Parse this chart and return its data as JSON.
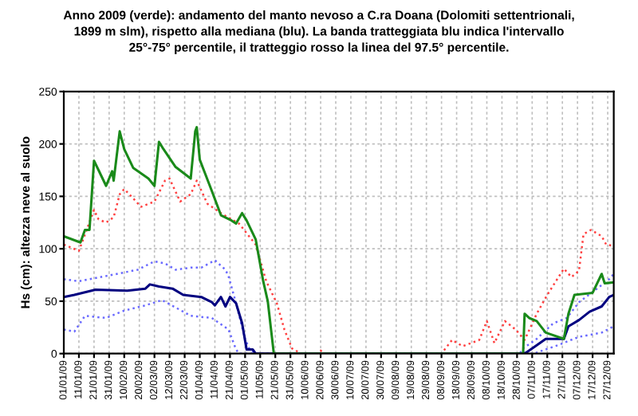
{
  "chart_data": {
    "type": "line",
    "title": "Anno 2009 (verde): andamento del manto nevoso a C.ra Doana (Dolomiti settentrionali,\n1899 m slm), rispetto alla mediana (blu). La banda tratteggiata blu indica l'intervallo\n25°-75° percentile, il tratteggio rosso la linea del 97.5° percentile.",
    "ylabel": "Hs (cm): altezza neve al suolo",
    "ylim": [
      0,
      250
    ],
    "yticks": [
      0,
      50,
      100,
      150,
      200,
      250
    ],
    "xlim": [
      "2009-01-01",
      "2009-12-31"
    ],
    "xticks": [
      {
        "value": "2009-01-01",
        "label": "01/01/09"
      },
      {
        "value": "2009-01-11",
        "label": "11/01/09"
      },
      {
        "value": "2009-01-21",
        "label": "21/01/09"
      },
      {
        "value": "2009-01-31",
        "label": "31/01/09"
      },
      {
        "value": "2009-02-10",
        "label": "10/02/09"
      },
      {
        "value": "2009-02-20",
        "label": "20/02/09"
      },
      {
        "value": "2009-03-02",
        "label": "02/03/09"
      },
      {
        "value": "2009-03-12",
        "label": "12/03/09"
      },
      {
        "value": "2009-03-22",
        "label": "22/03/09"
      },
      {
        "value": "2009-04-01",
        "label": "01/04/09"
      },
      {
        "value": "2009-04-11",
        "label": "11/04/09"
      },
      {
        "value": "2009-04-21",
        "label": "21/04/09"
      },
      {
        "value": "2009-05-01",
        "label": "01/05/09"
      },
      {
        "value": "2009-05-11",
        "label": "11/05/09"
      },
      {
        "value": "2009-05-21",
        "label": "21/05/09"
      },
      {
        "value": "2009-05-31",
        "label": "31/05/09"
      },
      {
        "value": "2009-06-10",
        "label": "10/06/09"
      },
      {
        "value": "2009-06-20",
        "label": "20/06/09"
      },
      {
        "value": "2009-06-30",
        "label": "30/06/09"
      },
      {
        "value": "2009-07-10",
        "label": "10/07/09"
      },
      {
        "value": "2009-07-20",
        "label": "20/07/09"
      },
      {
        "value": "2009-07-30",
        "label": "30/07/09"
      },
      {
        "value": "2009-08-09",
        "label": "09/08/09"
      },
      {
        "value": "2009-08-19",
        "label": "19/08/09"
      },
      {
        "value": "2009-08-29",
        "label": "29/08/09"
      },
      {
        "value": "2009-09-08",
        "label": "08/09/09"
      },
      {
        "value": "2009-09-18",
        "label": "18/09/09"
      },
      {
        "value": "2009-09-28",
        "label": "28/09/09"
      },
      {
        "value": "2009-10-08",
        "label": "08/10/09"
      },
      {
        "value": "2009-10-18",
        "label": "18/10/09"
      },
      {
        "value": "2009-10-28",
        "label": "28/10/09"
      },
      {
        "value": "2009-11-07",
        "label": "07/11/09"
      },
      {
        "value": "2009-11-17",
        "label": "17/11/09"
      },
      {
        "value": "2009-11-27",
        "label": "27/11/09"
      },
      {
        "value": "2009-12-07",
        "label": "07/12/09"
      },
      {
        "value": "2009-12-17",
        "label": "17/12/09"
      },
      {
        "value": "2009-12-27",
        "label": "27/12/09"
      }
    ],
    "grid": true,
    "legend": false,
    "series": [
      {
        "color": "#ff4040",
        "line_style": "dotted",
        "x": [
          "2009-01-01",
          "2009-01-11",
          "2009-01-21",
          "2009-01-24",
          "2009-01-29",
          "2009-02-03",
          "2009-02-07",
          "2009-02-10",
          "2009-02-16",
          "2009-02-21",
          "2009-03-02",
          "2009-03-09",
          "2009-03-12",
          "2009-03-19",
          "2009-03-26",
          "2009-03-30",
          "2009-04-06",
          "2009-04-16",
          "2009-04-27",
          "2009-05-08",
          "2009-05-15",
          "2009-05-22",
          "2009-05-27",
          "2009-06-01",
          "2009-06-07",
          "2009-06-18",
          "2009-06-20",
          "2009-06-22",
          "2009-09-08",
          "2009-09-15",
          "2009-09-22",
          "2009-10-03",
          "2009-10-08",
          "2009-10-13",
          "2009-10-20",
          "2009-10-27",
          "2009-11-02",
          "2009-11-10",
          "2009-11-17",
          "2009-11-24",
          "2009-11-28",
          "2009-12-03",
          "2009-12-08",
          "2009-12-11",
          "2009-12-16",
          "2009-12-23",
          "2009-12-26",
          "2009-12-30"
        ],
        "values": [
          104,
          98,
          137,
          128,
          125,
          130,
          152,
          157,
          148,
          140,
          145,
          165,
          167,
          145,
          152,
          165,
          143,
          133,
          124,
          104,
          69,
          48,
          23,
          5,
          0,
          0,
          3,
          0,
          0,
          13,
          7,
          13,
          31,
          10,
          31,
          23,
          13,
          38,
          56,
          72,
          81,
          73,
          79,
          114,
          118,
          112,
          104,
          103
        ]
      },
      {
        "color": "#6a6aff",
        "line_style": "dotted",
        "x": [
          "2009-01-01",
          "2009-01-11",
          "2009-01-29",
          "2009-02-19",
          "2009-03-02",
          "2009-03-09",
          "2009-03-16",
          "2009-03-26",
          "2009-04-02",
          "2009-04-11",
          "2009-04-18",
          "2009-04-20",
          "2009-04-25",
          "2009-05-01",
          "2009-05-04",
          "2009-05-08",
          "2009-10-30",
          "2009-10-31",
          "2009-11-10",
          "2009-11-21",
          "2009-11-30",
          "2009-12-08",
          "2009-12-19",
          "2009-12-28",
          "2009-12-31"
        ],
        "values": [
          71,
          69,
          74,
          80,
          88,
          86,
          80,
          82,
          82,
          89,
          80,
          74,
          48,
          14,
          4,
          0,
          0,
          4,
          14,
          29,
          34,
          49,
          61,
          71,
          76
        ]
      },
      {
        "color": "#6a6aff",
        "line_style": "dotted",
        "x": [
          "2009-01-01",
          "2009-01-08",
          "2009-01-15",
          "2009-01-29",
          "2009-02-10",
          "2009-02-24",
          "2009-03-07",
          "2009-03-16",
          "2009-03-26",
          "2009-04-09",
          "2009-04-20",
          "2009-04-25",
          "2009-04-27",
          "2009-11-08",
          "2009-11-10",
          "2009-11-24",
          "2009-12-08",
          "2009-12-23",
          "2009-12-31"
        ],
        "values": [
          23,
          21,
          36,
          34,
          41,
          46,
          51,
          44,
          36,
          34,
          23,
          4,
          0,
          0,
          1,
          8,
          16,
          20,
          26
        ]
      },
      {
        "color": "#000080",
        "line_style": "solid",
        "x": [
          "2009-01-01",
          "2009-01-08",
          "2009-01-22",
          "2009-02-12",
          "2009-02-24",
          "2009-02-27",
          "2009-03-05",
          "2009-03-14",
          "2009-03-21",
          "2009-04-02",
          "2009-04-09",
          "2009-04-11",
          "2009-04-15",
          "2009-04-18",
          "2009-04-21",
          "2009-04-25",
          "2009-04-29",
          "2009-05-02",
          "2009-05-06",
          "2009-05-08",
          "2009-11-01",
          "2009-11-03",
          "2009-11-10",
          "2009-11-16",
          "2009-11-28",
          "2009-12-01",
          "2009-12-08",
          "2009-12-15",
          "2009-12-23",
          "2009-12-28",
          "2009-12-31"
        ],
        "values": [
          54,
          56,
          61,
          60,
          62,
          66,
          64,
          62,
          56,
          54,
          49,
          46,
          54,
          45,
          54,
          48,
          29,
          4,
          4,
          0,
          0,
          1,
          8,
          14,
          14,
          26,
          32,
          40,
          45,
          54,
          56
        ]
      },
      {
        "color": "#1a8a1a",
        "line_style": "solid",
        "x": [
          "2009-01-01",
          "2009-01-12",
          "2009-01-15",
          "2009-01-18",
          "2009-01-21",
          "2009-01-24",
          "2009-01-29",
          "2009-02-02",
          "2009-02-03",
          "2009-02-07",
          "2009-02-10",
          "2009-02-16",
          "2009-02-26",
          "2009-03-02",
          "2009-03-05",
          "2009-03-08",
          "2009-03-16",
          "2009-03-26",
          "2009-03-29",
          "2009-03-30",
          "2009-04-01",
          "2009-04-09",
          "2009-04-15",
          "2009-04-22",
          "2009-04-25",
          "2009-04-29",
          "2009-05-02",
          "2009-05-08",
          "2009-05-13",
          "2009-05-16",
          "2009-05-20",
          "2009-11-01",
          "2009-11-02",
          "2009-11-05",
          "2009-11-10",
          "2009-11-16",
          "2009-11-28",
          "2009-12-01",
          "2009-12-05",
          "2009-12-17",
          "2009-12-23",
          "2009-12-25",
          "2009-12-31"
        ],
        "values": [
          112,
          106,
          118,
          118,
          184,
          175,
          160,
          174,
          165,
          212,
          195,
          177,
          167,
          160,
          202,
          195,
          178,
          167,
          212,
          216,
          185,
          155,
          132,
          127,
          124,
          134,
          127,
          109,
          69,
          50,
          0,
          0,
          38,
          34,
          31,
          20,
          14,
          38,
          56,
          58,
          76,
          67,
          68
        ]
      }
    ]
  }
}
